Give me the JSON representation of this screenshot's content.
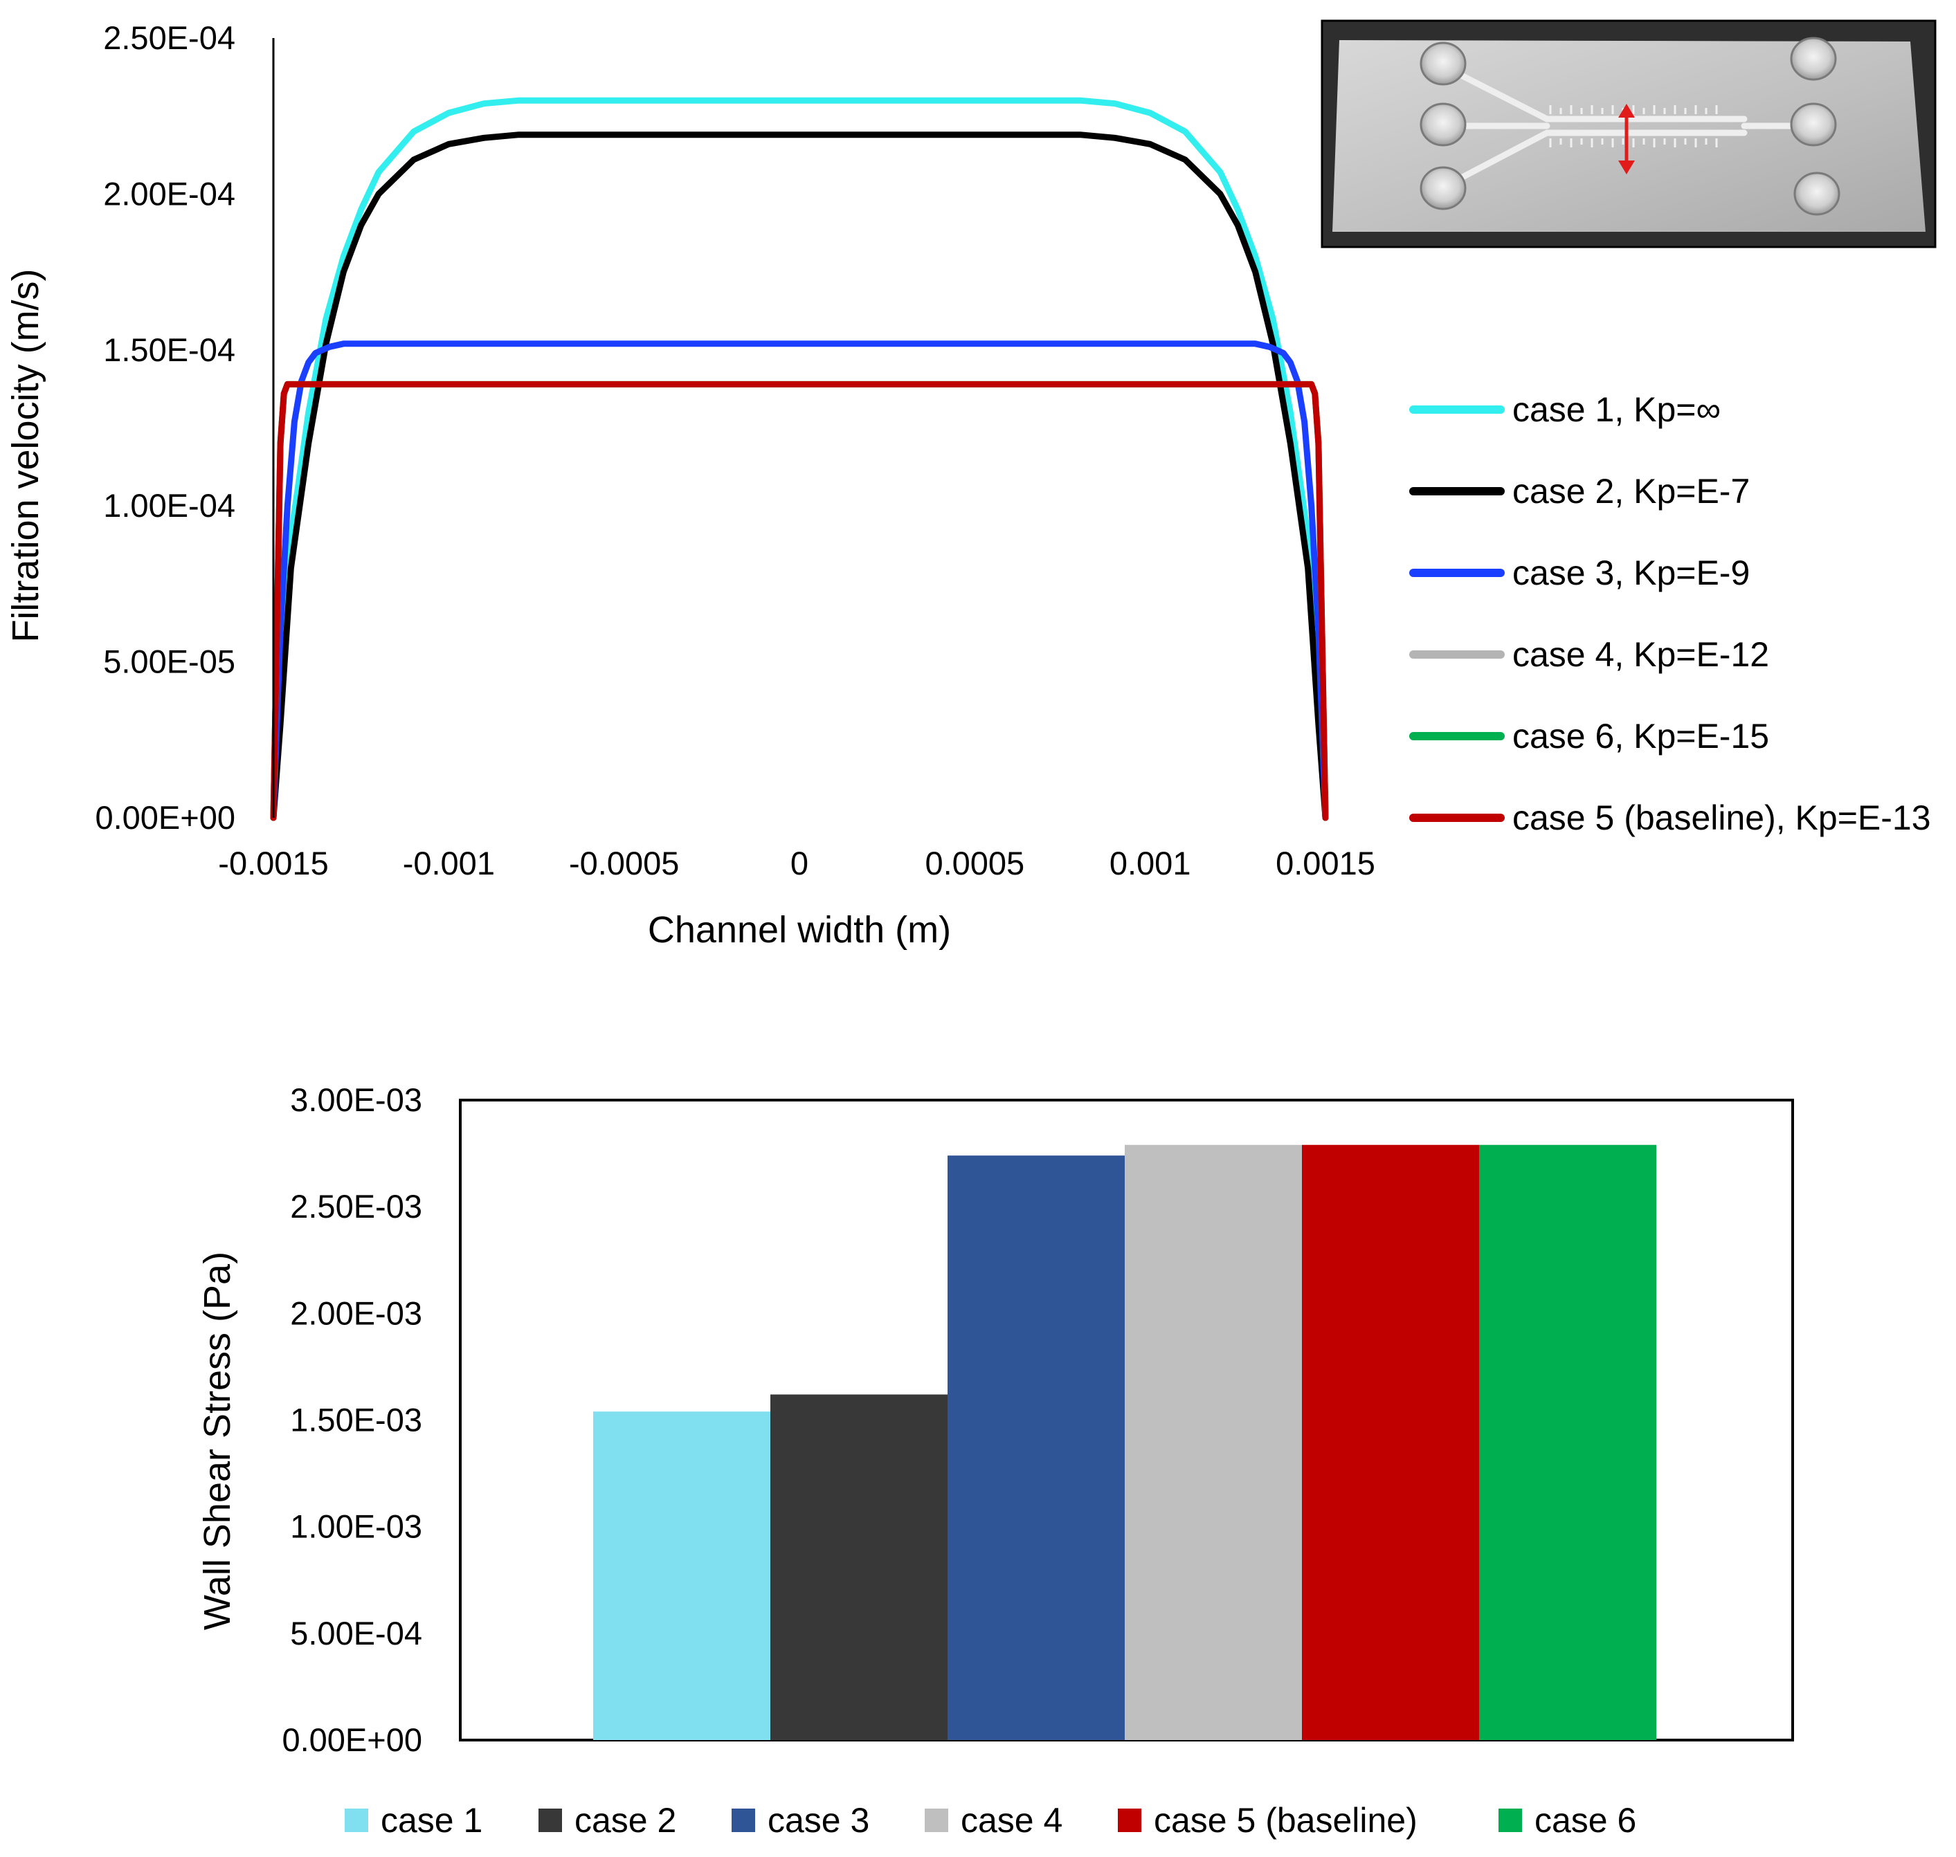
{
  "chart_data": [
    {
      "type": "line",
      "title": "",
      "xlabel": "Channel width (m)",
      "ylabel": "Filtration velocity (m/s)",
      "xlim": [
        -0.0015,
        0.0015
      ],
      "ylim": [
        0,
        0.00025
      ],
      "x_ticks": [
        -0.0015,
        -0.001,
        -0.0005,
        0,
        0.0005,
        0.001,
        0.0015
      ],
      "x_tick_labels": [
        "-0.0015",
        "-0.001",
        "-0.0005",
        "0",
        "0.0005",
        "0.001",
        "0.0015"
      ],
      "y_ticks": [
        0,
        5e-05,
        0.0001,
        0.00015,
        0.0002,
        0.00025
      ],
      "y_tick_labels": [
        "0.00E+00",
        "5.00E-05",
        "1.00E-04",
        "1.50E-04",
        "2.00E-04",
        "2.50E-04"
      ],
      "grid": false,
      "legend": "right",
      "inset": "photo of microfluidic channel device (top-right)",
      "series": [
        {
          "name": "case 1, Kp=∞",
          "color": "#33eeee",
          "x": [
            -0.0015,
            -0.00148,
            -0.00145,
            -0.0014,
            -0.00135,
            -0.0013,
            -0.00125,
            -0.0012,
            -0.0011,
            -0.001,
            -0.0009,
            -0.0008,
            0,
            0.0008,
            0.0009,
            0.001,
            0.0011,
            0.0012,
            0.00125,
            0.0013,
            0.00135,
            0.0014,
            0.00145,
            0.00148,
            0.0015
          ],
          "y": [
            0,
            4e-05,
            9e-05,
            0.00013,
            0.00016,
            0.00018,
            0.000195,
            0.000207,
            0.00022,
            0.000226,
            0.000229,
            0.00023,
            0.00023,
            0.00023,
            0.000229,
            0.000226,
            0.00022,
            0.000207,
            0.000195,
            0.00018,
            0.00016,
            0.00013,
            9e-05,
            4e-05,
            0
          ]
        },
        {
          "name": "case 2, Kp=E-7",
          "color": "#000000",
          "x": [
            -0.0015,
            -0.00148,
            -0.00145,
            -0.0014,
            -0.00135,
            -0.0013,
            -0.00125,
            -0.0012,
            -0.0011,
            -0.001,
            -0.0009,
            -0.0008,
            0,
            0.0008,
            0.0009,
            0.001,
            0.0011,
            0.0012,
            0.00125,
            0.0013,
            0.00135,
            0.0014,
            0.00145,
            0.00148,
            0.0015
          ],
          "y": [
            0,
            3e-05,
            8e-05,
            0.00012,
            0.000152,
            0.000175,
            0.00019,
            0.0002,
            0.000211,
            0.000216,
            0.000218,
            0.000219,
            0.000219,
            0.000219,
            0.000218,
            0.000216,
            0.000211,
            0.0002,
            0.00019,
            0.000175,
            0.000152,
            0.00012,
            8e-05,
            3e-05,
            0
          ]
        },
        {
          "name": "case 3, Kp=E-9",
          "color": "#1a3fff",
          "x": [
            -0.0015,
            -0.00148,
            -0.00146,
            -0.00144,
            -0.00142,
            -0.0014,
            -0.00138,
            -0.00136,
            -0.00134,
            -0.0013,
            0,
            0.0013,
            0.00134,
            0.00136,
            0.00138,
            0.0014,
            0.00142,
            0.00144,
            0.00146,
            0.00148,
            0.0015
          ],
          "y": [
            0,
            6e-05,
            0.0001,
            0.000127,
            0.00014,
            0.000146,
            0.000149,
            0.00015,
            0.000151,
            0.000152,
            0.000152,
            0.000152,
            0.000151,
            0.00015,
            0.000149,
            0.000146,
            0.00014,
            0.000127,
            0.0001,
            6e-05,
            0
          ]
        },
        {
          "name": "case 4, Kp=E-12",
          "color": "#b4b4b4",
          "x": [
            -0.0015,
            -0.00148,
            -0.00147,
            -0.00146,
            0,
            0.00146,
            0.00147,
            0.00148,
            0.0015
          ],
          "y": [
            0,
            0.00012,
            0.000136,
            0.000139,
            0.000139,
            0.000139,
            0.000136,
            0.00012,
            0
          ]
        },
        {
          "name": "case 6, Kp=E-15",
          "color": "#00b050",
          "x": [
            -0.0015,
            -0.00148,
            -0.00147,
            -0.00146,
            0,
            0.00146,
            0.00147,
            0.00148,
            0.0015
          ],
          "y": [
            0,
            0.00012,
            0.000136,
            0.000139,
            0.000139,
            0.000139,
            0.000136,
            0.00012,
            0
          ]
        },
        {
          "name": "case 5 (baseline), Kp=E-13",
          "color": "#c00000",
          "x": [
            -0.0015,
            -0.00148,
            -0.00147,
            -0.00146,
            0,
            0.00146,
            0.00147,
            0.00148,
            0.0015
          ],
          "y": [
            0,
            0.00012,
            0.000136,
            0.000139,
            0.000139,
            0.000139,
            0.000136,
            0.00012,
            0
          ]
        }
      ]
    },
    {
      "type": "bar",
      "title": "",
      "xlabel": "",
      "ylabel": "Wall Shear Stress (Pa)",
      "ylim": [
        0,
        0.003
      ],
      "y_ticks": [
        0,
        0.0005,
        0.001,
        0.0015,
        0.002,
        0.0025,
        0.003
      ],
      "y_tick_labels": [
        "0.00E+00",
        "5.00E-04",
        "1.00E-03",
        "1.50E-03",
        "2.00E-03",
        "2.50E-03",
        "3.00E-03"
      ],
      "grid": false,
      "legend": "bottom",
      "series": [
        {
          "name": "case 1",
          "color": "#81e0f0",
          "value": 0.00154
        },
        {
          "name": "case 2",
          "color": "#383838",
          "value": 0.00162
        },
        {
          "name": "case 3",
          "color": "#2f5597",
          "value": 0.00274
        },
        {
          "name": "case 4",
          "color": "#bfbfbf",
          "value": 0.00279
        },
        {
          "name": "case 5 (baseline)",
          "color": "#c00000",
          "value": 0.00279
        },
        {
          "name": "case 6",
          "color": "#00b050",
          "value": 0.00279
        }
      ]
    }
  ]
}
